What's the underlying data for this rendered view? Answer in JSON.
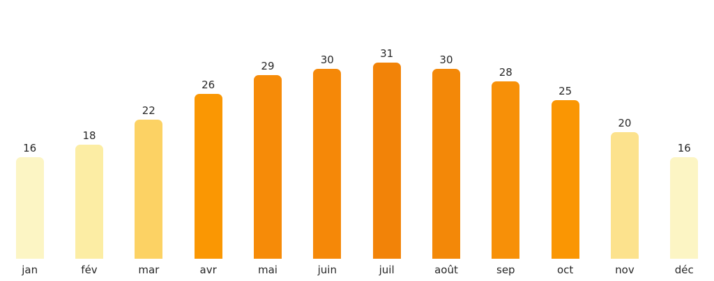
{
  "chart_data": {
    "type": "bar",
    "title": "",
    "xlabel": "",
    "ylabel": "",
    "categories": [
      "jan",
      "fév",
      "mar",
      "avr",
      "mai",
      "juin",
      "juil",
      "août",
      "sep",
      "oct",
      "nov",
      "déc"
    ],
    "values": [
      16,
      18,
      22,
      26,
      29,
      30,
      31,
      30,
      28,
      25,
      20,
      16
    ],
    "value_labels": [
      "16",
      "18",
      "22",
      "26",
      "29",
      "30",
      "31",
      "30",
      "28",
      "25",
      "20",
      "16"
    ],
    "bar_colors": [
      "#FCF5C4",
      "#FCEDA4",
      "#FCD264",
      "#FA9703",
      "#F68B08",
      "#F58808",
      "#F28308",
      "#F38808",
      "#F79008",
      "#FA9603",
      "#FCE28D",
      "#FCF5C4"
    ],
    "text_color": "#262626",
    "background_color": "#ffffff",
    "ylim": [
      0,
      41
    ],
    "grid": false,
    "axes_shown": false,
    "legend": null,
    "value_labels_position": "above-bars",
    "bar_corner_style": "rounded-top"
  }
}
